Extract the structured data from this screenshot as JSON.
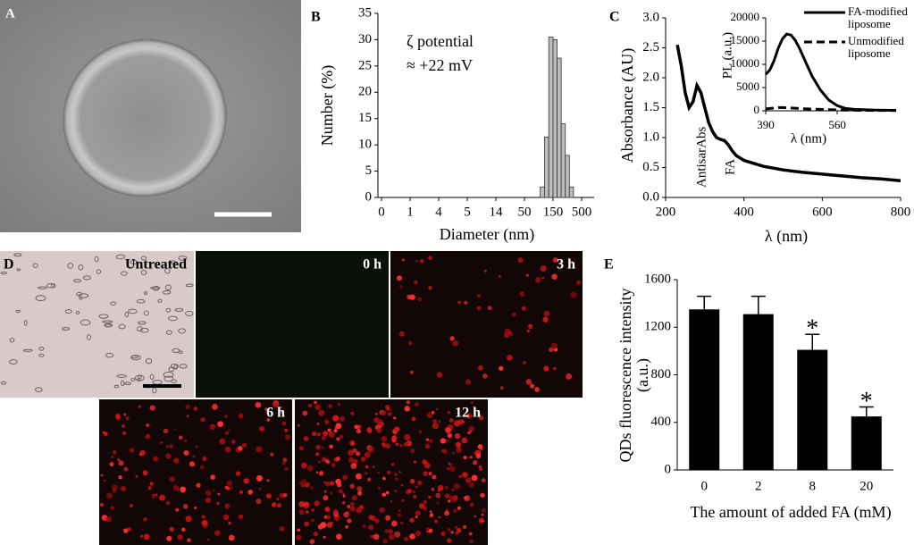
{
  "panel_a": {
    "label": "A"
  },
  "panel_d": {
    "label": "D",
    "images": [
      "Untreated",
      "0 h",
      "3 h",
      "6 h",
      "12 h"
    ]
  },
  "chart_data": [
    {
      "type": "histogram",
      "panel_label": "B",
      "annotations": [
        "ζ potential",
        "≈ +22 mV"
      ],
      "xlabel": "Diameter (nm)",
      "ylabel": "Number (%)",
      "bins": [
        105,
        120,
        135,
        150,
        200,
        250,
        300,
        350,
        400
      ],
      "values": [
        2,
        11.5,
        30.5,
        30,
        26.5,
        14,
        8,
        2
      ],
      "color": "#bdbdbd",
      "xticks": [
        0,
        1,
        4,
        5,
        14,
        50,
        150,
        500
      ],
      "ylim": [
        0,
        35
      ],
      "yticks": [
        0,
        5,
        10,
        15,
        20,
        25,
        30,
        35
      ]
    },
    {
      "type": "line",
      "panel_label": "C",
      "annotations": [
        "AntisarAbs",
        "FA"
      ],
      "xlabel": "λ (nm)",
      "ylabel": "Absorbance (AU)",
      "x": [
        230,
        240,
        250,
        260,
        270,
        280,
        290,
        300,
        310,
        320,
        330,
        340,
        350,
        360,
        370,
        380,
        400,
        450,
        500,
        550,
        600,
        650,
        700,
        750,
        800
      ],
      "series": [
        {
          "color": "#000000",
          "dash": false,
          "values": [
            2.55,
            2.2,
            1.75,
            1.5,
            1.6,
            1.87,
            1.75,
            1.5,
            1.25,
            1.1,
            1.0,
            0.97,
            0.95,
            0.88,
            0.78,
            0.7,
            0.62,
            0.52,
            0.46,
            0.42,
            0.39,
            0.36,
            0.33,
            0.31,
            0.28
          ]
        }
      ],
      "xlim": [
        200,
        800
      ],
      "xticks": [
        200,
        400,
        600,
        800
      ],
      "ylim": [
        0,
        3
      ],
      "yticks": [
        {
          "value": 0,
          "label": "0.0"
        },
        {
          "value": 0.5,
          "label": "0.5"
        },
        {
          "value": 1,
          "label": "1.0"
        },
        {
          "value": 1.5,
          "label": "1.5"
        },
        {
          "value": 2,
          "label": "2.0"
        },
        {
          "value": 2.5,
          "label": "2.5"
        },
        {
          "value": 3,
          "label": "3.0"
        }
      ]
    },
    {
      "type": "line",
      "inset": true,
      "xlabel": "λ (nm)",
      "ylabel": "PL (a.u.)",
      "x": [
        390,
        400,
        410,
        420,
        430,
        440,
        450,
        460,
        470,
        480,
        490,
        500,
        520,
        540,
        560,
        580,
        600,
        650,
        700
      ],
      "series": [
        {
          "name": "FA-modified liposome",
          "color": "#000000",
          "dash": false,
          "values": [
            7800,
            8800,
            10800,
            13500,
            15500,
            16500,
            16300,
            15200,
            13500,
            11500,
            9500,
            7500,
            4500,
            2300,
            1100,
            500,
            300,
            150,
            100
          ]
        },
        {
          "name": "Unmodified liposome",
          "color": "#000000",
          "dash": true,
          "values": [
            400,
            500,
            600,
            700,
            700,
            650,
            600,
            550,
            500,
            450,
            400,
            350,
            300,
            250,
            200,
            150,
            120,
            80,
            50
          ]
        }
      ],
      "xlim": [
        390,
        700
      ],
      "xticks": [
        390,
        560
      ],
      "ylim": [
        0,
        20000
      ],
      "yticks": [
        0,
        5000,
        10000,
        15000,
        20000
      ]
    },
    {
      "type": "bar",
      "panel_label": "E",
      "xlabel": "The amount of added FA (mM)",
      "ylabel": "QDs fluorescence intensity (a.u.)",
      "categories": [
        "0",
        "2",
        "8",
        "20"
      ],
      "values": [
        1350,
        1310,
        1010,
        450
      ],
      "errors": [
        110,
        150,
        130,
        80
      ],
      "color": "#000000",
      "annotations": [
        {
          "text": "*",
          "x": "8"
        },
        {
          "text": "*",
          "x": "20"
        }
      ],
      "ylim": [
        0,
        1600
      ],
      "yticks": [
        0,
        400,
        800,
        1200,
        1600
      ]
    }
  ]
}
